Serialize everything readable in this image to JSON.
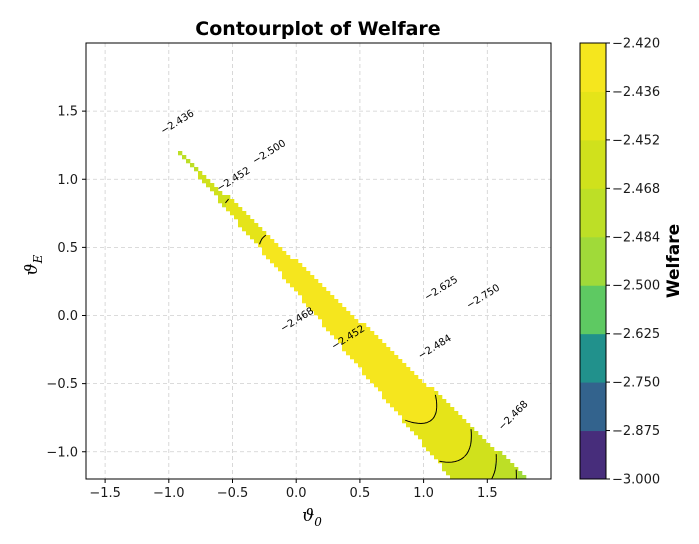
{
  "chart_data": {
    "type": "contour",
    "title": "Contourplot of Welfare",
    "xlabel": "ϑ",
    "xlabel_sub": "0",
    "ylabel": "ϑ",
    "ylabel_sub": "E",
    "xlim": [
      -1.65,
      2.0
    ],
    "ylim": [
      -1.2,
      2.0
    ],
    "xticks": [
      -1.5,
      -1.0,
      -0.5,
      0.0,
      0.5,
      1.0,
      1.5
    ],
    "xtick_labels": [
      "−1.5",
      "−1.0",
      "−0.5",
      "0.0",
      "0.5",
      "1.0",
      "1.5"
    ],
    "yticks": [
      -1.0,
      -0.5,
      0.0,
      0.5,
      1.0,
      1.5
    ],
    "ytick_labels": [
      "−1.0",
      "−0.5",
      "0.0",
      "0.5",
      "1.0",
      "1.5"
    ],
    "grid": true,
    "colorbar": {
      "label": "Welfare",
      "levels": [
        -3.0,
        -2.875,
        -2.75,
        -2.625,
        -2.5,
        -2.484,
        -2.468,
        -2.452,
        -2.436,
        -2.42
      ],
      "level_labels": [
        "−3.000",
        "−2.875",
        "−2.750",
        "−2.625",
        "−2.500",
        "−2.484",
        "−2.468",
        "−2.452",
        "−2.436",
        "−2.420"
      ],
      "colors": [
        "#472d7b",
        "#33638d",
        "#21918c",
        "#5ec962",
        "#a0da39",
        "#bddf26",
        "#d0e11c",
        "#e5e419",
        "#f5e61e"
      ]
    },
    "contour_labels": [
      "−2.436",
      "−2.500",
      "−2.452",
      "−2.625",
      "−2.750",
      "−2.468",
      "−2.452",
      "−2.484",
      "−2.468"
    ]
  }
}
